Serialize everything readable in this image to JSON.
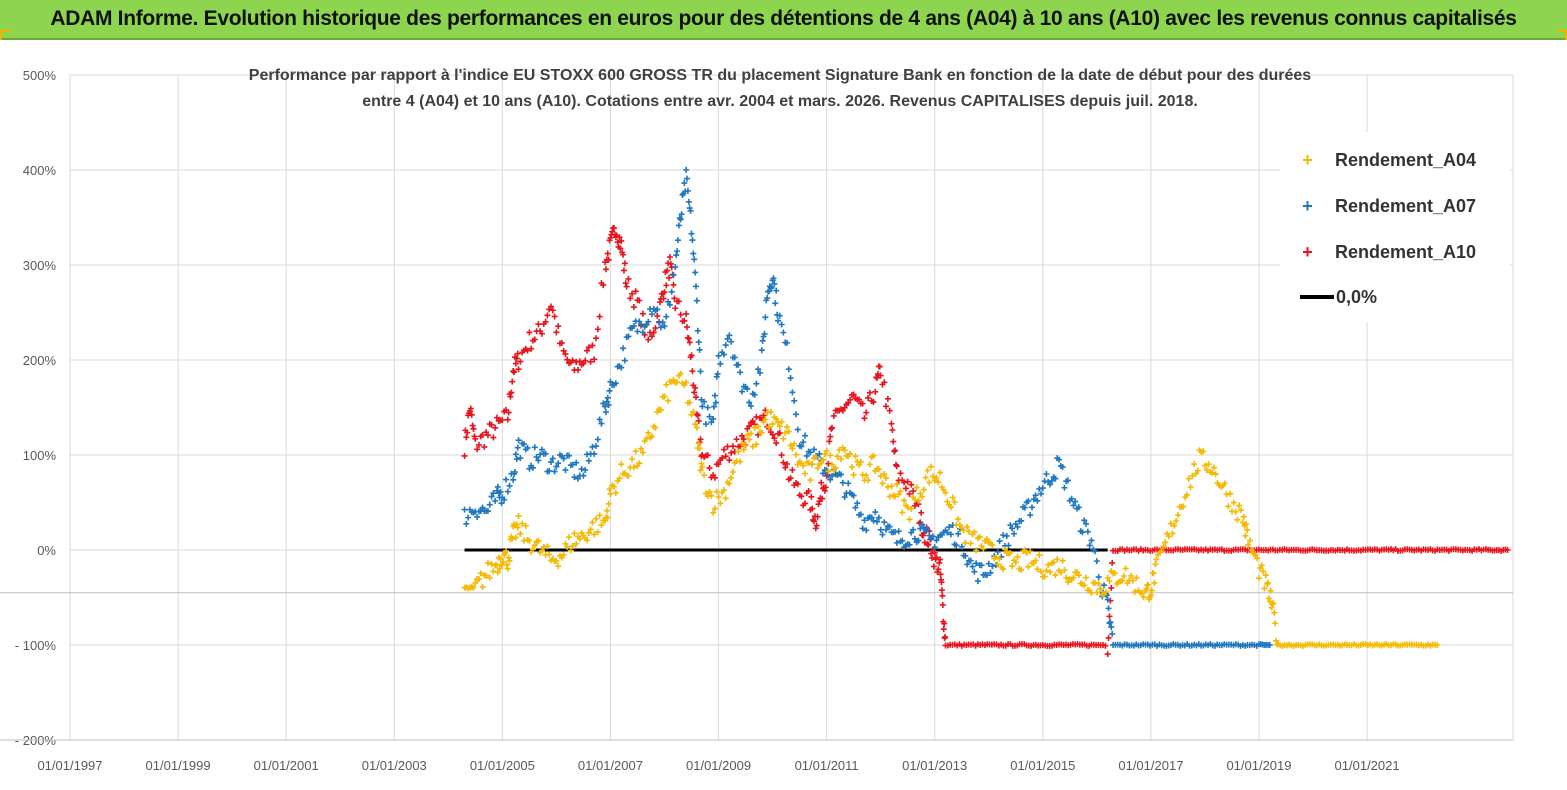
{
  "banner": {
    "title": "ADAM Informe. Evolution historique des performances en euros pour des détentions de 4 ans (A04) à 10 ans (A10) avec les revenus connus capitalisés"
  },
  "colors": {
    "banner_bg": "#8dd54f",
    "a04": "#f5b800",
    "a07": "#1f77c0",
    "a10": "#e8141c",
    "zero": "#000000"
  },
  "chart_data": {
    "type": "scatter",
    "title": "Performance par rapport à l'indice EU STOXX 600 GROSS TR  du placement Signature Bank en fonction de la date de début pour des durées\nentre 4 (A04) et 10 ans (A10). Cotations entre avr. 2004 et mars. 2026. Revenus CAPITALISES depuis juil. 2018.",
    "xlabel": "",
    "ylabel": "",
    "x_range": [
      1997.0,
      2023.7
    ],
    "ylim": [
      -200,
      500
    ],
    "y_ticks": [
      500,
      400,
      300,
      200,
      100,
      0,
      -100,
      -200
    ],
    "y_tick_labels": [
      "500%",
      "400%",
      "300%",
      "200%",
      "100%",
      "0%",
      "- 100%",
      "- 200%"
    ],
    "x_ticks": [
      1997,
      1999,
      2001,
      2003,
      2005,
      2007,
      2009,
      2011,
      2013,
      2015,
      2017,
      2019,
      2021
    ],
    "x_tick_labels": [
      "01/01/1997",
      "01/01/1999",
      "01/01/2001",
      "01/01/2003",
      "01/01/2005",
      "01/01/2007",
      "01/01/2009",
      "01/01/2011",
      "01/01/2013",
      "01/01/2015",
      "01/01/2017",
      "01/01/2019",
      "01/01/2021"
    ],
    "legend_position": "top-right",
    "series": [
      {
        "name": "Rendement_A04",
        "marker": "+",
        "points": [
          [
            2004.3,
            -40
          ],
          [
            2004.5,
            -40
          ],
          [
            2004.7,
            -25
          ],
          [
            2004.9,
            -15
          ],
          [
            2005.0,
            -5
          ],
          [
            2005.1,
            -10
          ],
          [
            2005.2,
            15
          ],
          [
            2005.3,
            25
          ],
          [
            2005.5,
            10
          ],
          [
            2005.7,
            0
          ],
          [
            2005.9,
            -10
          ],
          [
            2006.1,
            -5
          ],
          [
            2006.3,
            10
          ],
          [
            2006.5,
            15
          ],
          [
            2006.7,
            25
          ],
          [
            2006.9,
            30
          ],
          [
            2007.0,
            60
          ],
          [
            2007.2,
            80
          ],
          [
            2007.4,
            90
          ],
          [
            2007.6,
            100
          ],
          [
            2007.8,
            130
          ],
          [
            2008.0,
            160
          ],
          [
            2008.2,
            180
          ],
          [
            2008.4,
            170
          ],
          [
            2008.6,
            120
          ],
          [
            2008.7,
            80
          ],
          [
            2008.9,
            50
          ],
          [
            2009.1,
            60
          ],
          [
            2009.3,
            90
          ],
          [
            2009.5,
            110
          ],
          [
            2009.7,
            120
          ],
          [
            2009.9,
            140
          ],
          [
            2010.1,
            130
          ],
          [
            2010.3,
            120
          ],
          [
            2010.5,
            90
          ],
          [
            2010.7,
            80
          ],
          [
            2010.9,
            100
          ],
          [
            2011.1,
            90
          ],
          [
            2011.3,
            110
          ],
          [
            2011.5,
            90
          ],
          [
            2011.7,
            80
          ],
          [
            2011.9,
            90
          ],
          [
            2012.1,
            70
          ],
          [
            2012.3,
            60
          ],
          [
            2012.5,
            40
          ],
          [
            2012.7,
            60
          ],
          [
            2012.9,
            80
          ],
          [
            2013.1,
            75
          ],
          [
            2013.3,
            50
          ],
          [
            2013.5,
            20
          ],
          [
            2013.7,
            10
          ],
          [
            2013.9,
            5
          ],
          [
            2014.1,
            -5
          ],
          [
            2014.3,
            -10
          ],
          [
            2014.5,
            -15
          ],
          [
            2014.7,
            -10
          ],
          [
            2014.9,
            -15
          ],
          [
            2015.1,
            -20
          ],
          [
            2015.3,
            -15
          ],
          [
            2015.5,
            -25
          ],
          [
            2015.7,
            -30
          ],
          [
            2015.9,
            -35
          ],
          [
            2016.1,
            -40
          ],
          [
            2016.3,
            -30
          ],
          [
            2016.5,
            -25
          ],
          [
            2016.7,
            -35
          ],
          [
            2016.9,
            -45
          ],
          [
            2017.0,
            -40
          ],
          [
            2017.1,
            -20
          ],
          [
            2017.3,
            10
          ],
          [
            2017.5,
            40
          ],
          [
            2017.7,
            70
          ],
          [
            2017.9,
            95
          ],
          [
            2018.1,
            90
          ],
          [
            2018.3,
            70
          ],
          [
            2018.5,
            50
          ],
          [
            2018.7,
            35
          ],
          [
            2018.8,
            10
          ],
          [
            2019.0,
            -20
          ],
          [
            2019.15,
            -40
          ],
          [
            2019.25,
            -60
          ],
          [
            2019.35,
            -100
          ],
          [
            2019.6,
            -100
          ],
          [
            2019.9,
            -100
          ],
          [
            2020.2,
            -100
          ],
          [
            2020.5,
            -100
          ],
          [
            2020.8,
            -100
          ],
          [
            2021.1,
            -100
          ],
          [
            2021.4,
            -100
          ],
          [
            2021.7,
            -100
          ],
          [
            2022.0,
            -100
          ],
          [
            2022.3,
            -100
          ]
        ]
      },
      {
        "name": "Rendement_A07",
        "marker": "+",
        "points": [
          [
            2004.3,
            35
          ],
          [
            2004.5,
            45
          ],
          [
            2004.7,
            40
          ],
          [
            2004.9,
            55
          ],
          [
            2005.0,
            60
          ],
          [
            2005.2,
            80
          ],
          [
            2005.3,
            110
          ],
          [
            2005.5,
            95
          ],
          [
            2005.7,
            100
          ],
          [
            2005.9,
            90
          ],
          [
            2006.1,
            95
          ],
          [
            2006.3,
            85
          ],
          [
            2006.5,
            80
          ],
          [
            2006.7,
            110
          ],
          [
            2006.9,
            150
          ],
          [
            2007.0,
            170
          ],
          [
            2007.2,
            200
          ],
          [
            2007.4,
            230
          ],
          [
            2007.6,
            240
          ],
          [
            2007.8,
            260
          ],
          [
            2008.0,
            230
          ],
          [
            2008.2,
            300
          ],
          [
            2008.3,
            350
          ],
          [
            2008.4,
            390
          ],
          [
            2008.5,
            340
          ],
          [
            2008.6,
            260
          ],
          [
            2008.7,
            150
          ],
          [
            2008.9,
            130
          ],
          [
            2009.0,
            200
          ],
          [
            2009.2,
            230
          ],
          [
            2009.4,
            180
          ],
          [
            2009.6,
            160
          ],
          [
            2009.8,
            200
          ],
          [
            2009.9,
            270
          ],
          [
            2010.0,
            290
          ],
          [
            2010.1,
            250
          ],
          [
            2010.3,
            200
          ],
          [
            2010.5,
            120
          ],
          [
            2010.7,
            100
          ],
          [
            2010.9,
            90
          ],
          [
            2011.1,
            80
          ],
          [
            2011.3,
            70
          ],
          [
            2011.5,
            50
          ],
          [
            2011.7,
            30
          ],
          [
            2011.9,
            40
          ],
          [
            2012.1,
            20
          ],
          [
            2012.3,
            10
          ],
          [
            2012.5,
            15
          ],
          [
            2012.7,
            20
          ],
          [
            2012.9,
            10
          ],
          [
            2013.1,
            15
          ],
          [
            2013.3,
            20
          ],
          [
            2013.5,
            10
          ],
          [
            2013.7,
            -20
          ],
          [
            2013.9,
            -25
          ],
          [
            2014.1,
            -10
          ],
          [
            2014.3,
            10
          ],
          [
            2014.5,
            25
          ],
          [
            2014.7,
            40
          ],
          [
            2014.9,
            60
          ],
          [
            2015.1,
            75
          ],
          [
            2015.3,
            90
          ],
          [
            2015.5,
            60
          ],
          [
            2015.7,
            30
          ],
          [
            2015.9,
            10
          ],
          [
            2016.1,
            -40
          ],
          [
            2016.2,
            -60
          ],
          [
            2016.3,
            -100
          ],
          [
            2016.6,
            -100
          ],
          [
            2016.9,
            -100
          ],
          [
            2017.2,
            -100
          ],
          [
            2017.5,
            -100
          ],
          [
            2017.8,
            -100
          ],
          [
            2018.1,
            -100
          ],
          [
            2018.4,
            -100
          ],
          [
            2018.7,
            -100
          ],
          [
            2019.0,
            -100
          ],
          [
            2019.2,
            -100
          ]
        ]
      },
      {
        "name": "Rendement_A10",
        "marker": "+",
        "points": [
          [
            2004.3,
            110
          ],
          [
            2004.4,
            150
          ],
          [
            2004.5,
            110
          ],
          [
            2004.7,
            120
          ],
          [
            2004.9,
            130
          ],
          [
            2005.1,
            140
          ],
          [
            2005.2,
            190
          ],
          [
            2005.3,
            200
          ],
          [
            2005.5,
            220
          ],
          [
            2005.7,
            230
          ],
          [
            2005.9,
            260
          ],
          [
            2006.1,
            210
          ],
          [
            2006.3,
            190
          ],
          [
            2006.5,
            200
          ],
          [
            2006.7,
            210
          ],
          [
            2006.9,
            300
          ],
          [
            2007.0,
            320
          ],
          [
            2007.1,
            340
          ],
          [
            2007.2,
            320
          ],
          [
            2007.3,
            280
          ],
          [
            2007.5,
            260
          ],
          [
            2007.7,
            220
          ],
          [
            2007.9,
            250
          ],
          [
            2008.0,
            280
          ],
          [
            2008.1,
            300
          ],
          [
            2008.2,
            260
          ],
          [
            2008.4,
            240
          ],
          [
            2008.5,
            200
          ],
          [
            2008.6,
            140
          ],
          [
            2008.7,
            100
          ],
          [
            2008.9,
            80
          ],
          [
            2009.1,
            100
          ],
          [
            2009.3,
            110
          ],
          [
            2009.5,
            120
          ],
          [
            2009.7,
            130
          ],
          [
            2009.9,
            140
          ],
          [
            2010.1,
            120
          ],
          [
            2010.3,
            80
          ],
          [
            2010.5,
            60
          ],
          [
            2010.7,
            50
          ],
          [
            2010.8,
            30
          ],
          [
            2010.9,
            60
          ],
          [
            2011.0,
            80
          ],
          [
            2011.1,
            130
          ],
          [
            2011.3,
            150
          ],
          [
            2011.5,
            160
          ],
          [
            2011.7,
            140
          ],
          [
            2011.9,
            170
          ],
          [
            2012.0,
            190
          ],
          [
            2012.2,
            130
          ],
          [
            2012.3,
            80
          ],
          [
            2012.5,
            70
          ],
          [
            2012.7,
            40
          ],
          [
            2012.8,
            20
          ],
          [
            2012.9,
            10
          ],
          [
            2013.0,
            -10
          ],
          [
            2013.1,
            -20
          ],
          [
            2013.15,
            -60
          ],
          [
            2013.2,
            -100
          ],
          [
            2013.5,
            -100
          ],
          [
            2013.8,
            -100
          ],
          [
            2014.1,
            -100
          ],
          [
            2014.4,
            -100
          ],
          [
            2014.7,
            -100
          ],
          [
            2015.0,
            -100
          ],
          [
            2015.3,
            -100
          ],
          [
            2015.6,
            -100
          ],
          [
            2015.9,
            -100
          ],
          [
            2016.2,
            -100
          ],
          [
            2016.3,
            0
          ],
          [
            2016.6,
            0
          ],
          [
            2016.9,
            0
          ],
          [
            2017.2,
            0
          ],
          [
            2017.5,
            0
          ],
          [
            2017.8,
            0
          ],
          [
            2018.1,
            0
          ],
          [
            2018.4,
            0
          ],
          [
            2018.7,
            0
          ],
          [
            2019.0,
            0
          ],
          [
            2019.3,
            0
          ],
          [
            2019.6,
            0
          ],
          [
            2019.9,
            0
          ],
          [
            2020.2,
            0
          ],
          [
            2020.5,
            0
          ],
          [
            2020.8,
            0
          ],
          [
            2021.1,
            0
          ],
          [
            2021.4,
            0
          ],
          [
            2021.7,
            0
          ],
          [
            2022.0,
            0
          ],
          [
            2022.3,
            0
          ],
          [
            2022.6,
            0
          ],
          [
            2022.9,
            0
          ],
          [
            2023.2,
            0
          ],
          [
            2023.6,
            0
          ]
        ]
      },
      {
        "name": "0,0%",
        "type": "line",
        "x_start": 2004.3,
        "x_end": 2016.2,
        "value": 0
      }
    ]
  },
  "legend": {
    "items": [
      {
        "label": "Rendement_A04",
        "symbol": "+"
      },
      {
        "label": "Rendement_A07",
        "symbol": "+"
      },
      {
        "label": "Rendement_A10",
        "symbol": "+"
      },
      {
        "label": "0,0%",
        "symbol": "line"
      }
    ]
  }
}
